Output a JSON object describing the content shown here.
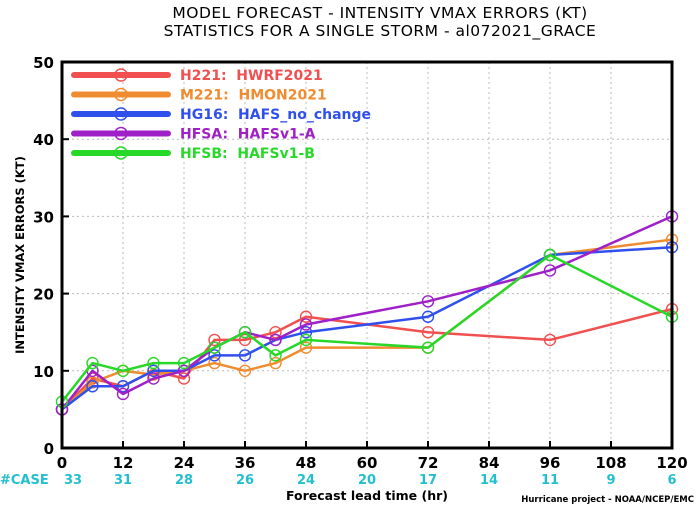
{
  "chart_data": {
    "type": "line",
    "title_line1": "MODEL FORECAST - INTENSITY VMAX ERRORS (KT)",
    "title_line2": "STATISTICS FOR A SINGLE STORM - al072021_GRACE",
    "ylabel": "INTENSITY VMAX ERRORS (KT)",
    "xlabel": "Forecast lead time (hr)",
    "credit": "Hurricane project - NOAA/NCEP/EMC",
    "xlim": [
      0,
      120
    ],
    "ylim": [
      0,
      50
    ],
    "x_ticks": [
      "0",
      "12",
      "24",
      "36",
      "48",
      "60",
      "72",
      "84",
      "96",
      "108",
      "120"
    ],
    "y_ticks": [
      "0",
      "10",
      "20",
      "30",
      "40",
      "50"
    ],
    "grid": true,
    "legend_position": "top-left",
    "case_label": "#CASE",
    "case_counts": [
      {
        "x": 0,
        "label": "33"
      },
      {
        "x": 12,
        "label": "31"
      },
      {
        "x": 24,
        "label": "28"
      },
      {
        "x": 36,
        "label": "26"
      },
      {
        "x": 48,
        "label": "24"
      },
      {
        "x": 60,
        "label": "20"
      },
      {
        "x": 72,
        "label": "17"
      },
      {
        "x": 84,
        "label": "14"
      },
      {
        "x": 96,
        "label": "11"
      },
      {
        "x": 108,
        "label": "9"
      },
      {
        "x": 120,
        "label": "6"
      }
    ],
    "series": [
      {
        "name": "H221:  HWRF2021",
        "color": "#f05050",
        "x": [
          0,
          6,
          12,
          18,
          24,
          30,
          36,
          42,
          48,
          72,
          96,
          120
        ],
        "y": [
          5,
          9,
          8,
          10,
          9,
          14,
          14,
          15,
          17,
          15,
          14,
          18
        ]
      },
      {
        "name": "M221:  HMON2021",
        "color": "#f08c30",
        "x": [
          0,
          6,
          12,
          18,
          24,
          30,
          36,
          42,
          48,
          72,
          96,
          120
        ],
        "y": [
          5,
          8.5,
          10,
          9.5,
          10,
          11,
          10,
          11,
          13,
          13,
          25,
          27
        ]
      },
      {
        "name": "HG16:  HAFS_no_change",
        "color": "#3050ee",
        "x": [
          0,
          6,
          12,
          18,
          24,
          30,
          36,
          42,
          48,
          72,
          96,
          120
        ],
        "y": [
          5,
          8,
          8,
          10,
          10,
          12,
          12,
          14,
          15,
          17,
          25,
          26
        ]
      },
      {
        "name": "HFSA:  HAFSv1-A",
        "color": "#a020c8",
        "x": [
          0,
          6,
          12,
          18,
          24,
          30,
          36,
          42,
          48,
          72,
          96,
          120
        ],
        "y": [
          5,
          10,
          7,
          9,
          10,
          13,
          15,
          14,
          16,
          19,
          23,
          30
        ]
      },
      {
        "name": "HFSB:  HAFSv1-B",
        "color": "#28d828",
        "x": [
          0,
          6,
          12,
          18,
          24,
          30,
          36,
          42,
          48,
          72,
          96,
          120
        ],
        "y": [
          6,
          11,
          10,
          11,
          11,
          13,
          15,
          12,
          14,
          13,
          25,
          17
        ]
      }
    ]
  }
}
